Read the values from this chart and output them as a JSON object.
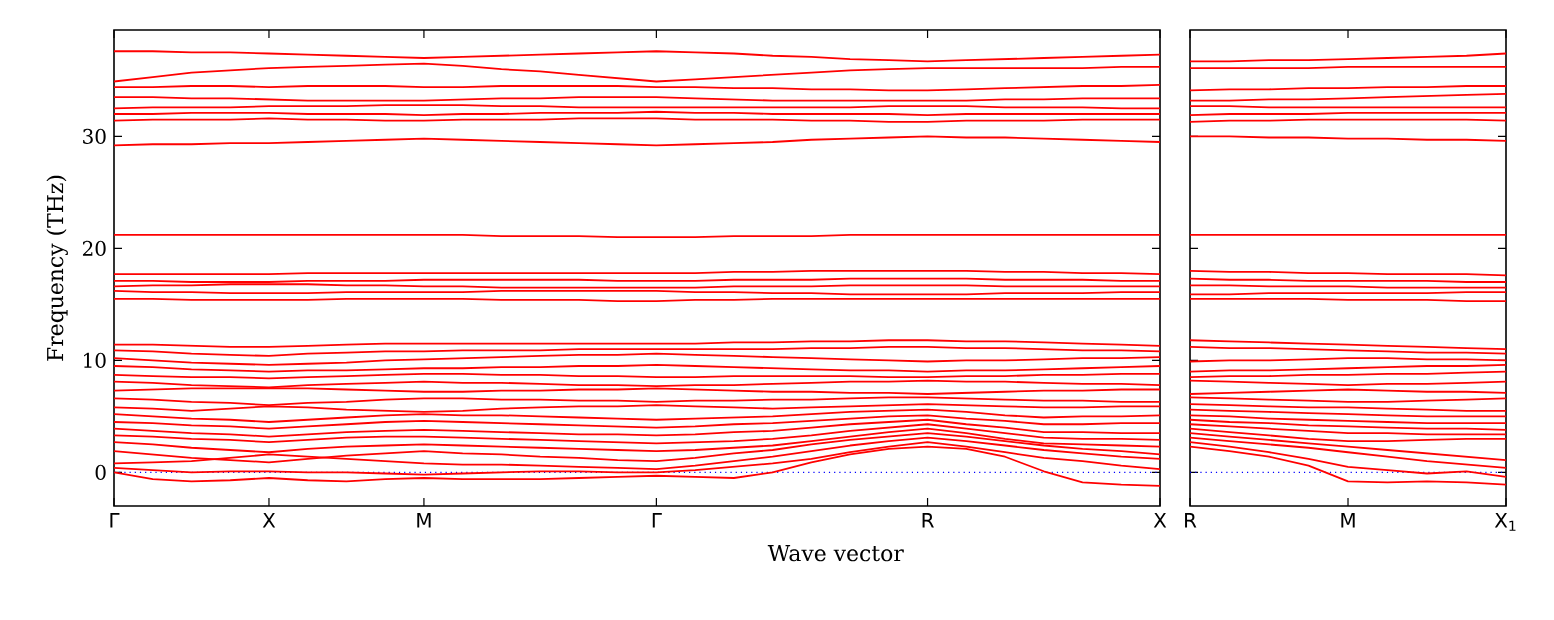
{
  "chart_data": [
    {
      "type": "line",
      "ylabel": "Frequency (THz)",
      "xlabel": "Wave vector",
      "marker": "none",
      "line_style": "solid",
      "categories": [
        "Γ",
        null,
        null,
        null,
        "X",
        null,
        null,
        null,
        "M",
        null,
        null,
        null,
        null,
        null,
        "Γ",
        null,
        null,
        null,
        null,
        null,
        null,
        "R",
        null,
        null,
        null,
        null,
        null,
        "X"
      ],
      "ylim": [
        -3,
        39.5
      ],
      "yticks": [
        0,
        10,
        20,
        30
      ],
      "ref_lines": [
        {
          "axis": "y",
          "value": 0,
          "color": "#0000ff",
          "line_style": "dotted"
        }
      ],
      "series": [
        {
          "color": "#ff0000",
          "values": [
            0,
            -0.6,
            -0.8,
            -0.7,
            -0.5,
            -0.7,
            -0.8,
            -0.6,
            -0.5,
            -0.6,
            -0.6,
            -0.6,
            -0.5,
            -0.4,
            -0.3,
            -0.4,
            -0.5,
            0,
            0.9,
            1.6,
            2.1,
            2.3,
            2.1,
            1.4,
            0.1,
            -0.9,
            -1.1,
            -1.2
          ]
        },
        {
          "color": "#ff0000",
          "values": [
            0.4,
            0.2,
            0.0,
            0.1,
            0.1,
            0.0,
            0.0,
            -0.1,
            -0.2,
            -0.1,
            0.0,
            0.1,
            0.1,
            0.0,
            0.0,
            0.2,
            0.5,
            0.8,
            1.2,
            1.8,
            2.3,
            2.7,
            2.3,
            1.8,
            1.3,
            1.0,
            0.6,
            0.3
          ]
        },
        {
          "color": "#ff0000",
          "values": [
            0.8,
            0.9,
            1.0,
            1.3,
            1.6,
            1.4,
            1.2,
            1.0,
            0.8,
            0.7,
            0.7,
            0.6,
            0.5,
            0.4,
            0.3,
            0.6,
            1.0,
            1.4,
            1.9,
            2.4,
            2.8,
            3.1,
            2.8,
            2.4,
            2.0,
            1.7,
            1.4,
            1.2
          ]
        },
        {
          "color": "#ff0000",
          "values": [
            1.9,
            1.6,
            1.3,
            1.1,
            0.9,
            1.2,
            1.5,
            1.7,
            1.9,
            1.7,
            1.6,
            1.4,
            1.3,
            1.1,
            1.0,
            1.3,
            1.7,
            2.0,
            2.5,
            2.9,
            3.2,
            3.5,
            3.2,
            2.8,
            2.4,
            2.1,
            1.9,
            1.6
          ]
        },
        {
          "color": "#ff0000",
          "values": [
            2.7,
            2.5,
            2.2,
            2.0,
            1.8,
            2.1,
            2.3,
            2.4,
            2.5,
            2.4,
            2.3,
            2.2,
            2.1,
            2.0,
            1.9,
            2.0,
            2.2,
            2.4,
            2.8,
            3.2,
            3.6,
            3.9,
            3.5,
            3.0,
            2.6,
            2.5,
            2.4,
            2.3
          ]
        },
        {
          "color": "#ff0000",
          "values": [
            3.3,
            3.2,
            3.0,
            2.9,
            2.7,
            2.9,
            3.1,
            3.2,
            3.2,
            3.1,
            3.0,
            2.9,
            2.8,
            2.7,
            2.6,
            2.7,
            2.8,
            3.0,
            3.3,
            3.7,
            4.0,
            4.3,
            3.9,
            3.5,
            3.1,
            3.0,
            3.0,
            2.9
          ]
        },
        {
          "color": "#ff0000",
          "values": [
            3.9,
            3.7,
            3.5,
            3.4,
            3.2,
            3.4,
            3.6,
            3.7,
            3.8,
            3.7,
            3.6,
            3.5,
            3.4,
            3.4,
            3.3,
            3.4,
            3.6,
            3.7,
            4.0,
            4.3,
            4.5,
            4.7,
            4.3,
            4.0,
            3.6,
            3.6,
            3.5,
            3.5
          ]
        },
        {
          "color": "#ff0000",
          "values": [
            4.5,
            4.4,
            4.2,
            4.1,
            3.9,
            4.1,
            4.3,
            4.5,
            4.6,
            4.5,
            4.4,
            4.3,
            4.2,
            4.1,
            4.0,
            4.1,
            4.3,
            4.4,
            4.6,
            4.8,
            5.0,
            5.1,
            4.8,
            4.6,
            4.3,
            4.3,
            4.4,
            4.4
          ]
        },
        {
          "color": "#ff0000",
          "values": [
            5.2,
            5.0,
            4.8,
            4.7,
            4.5,
            4.7,
            4.9,
            5.1,
            5.2,
            5.1,
            5.1,
            5.0,
            4.9,
            4.8,
            4.7,
            4.8,
            4.9,
            5.0,
            5.2,
            5.4,
            5.5,
            5.6,
            5.4,
            5.1,
            4.9,
            5.0,
            5.0,
            5.1
          ]
        },
        {
          "color": "#ff0000",
          "values": [
            5.8,
            5.7,
            5.5,
            5.7,
            5.9,
            5.8,
            5.6,
            5.5,
            5.4,
            5.5,
            5.7,
            5.8,
            5.9,
            5.9,
            6.0,
            5.9,
            5.8,
            5.7,
            5.8,
            5.9,
            6.0,
            6.1,
            6.0,
            5.9,
            5.8,
            5.8,
            5.9,
            5.9
          ]
        },
        {
          "color": "#ff0000",
          "values": [
            6.6,
            6.5,
            6.3,
            6.2,
            6.0,
            6.2,
            6.3,
            6.5,
            6.6,
            6.6,
            6.5,
            6.5,
            6.4,
            6.4,
            6.3,
            6.4,
            6.4,
            6.5,
            6.5,
            6.6,
            6.7,
            6.7,
            6.6,
            6.5,
            6.4,
            6.4,
            6.3,
            6.3
          ]
        },
        {
          "color": "#ff0000",
          "values": [
            7.3,
            7.4,
            7.5,
            7.5,
            7.5,
            7.5,
            7.4,
            7.3,
            7.2,
            7.2,
            7.3,
            7.3,
            7.4,
            7.4,
            7.5,
            7.4,
            7.3,
            7.2,
            7.2,
            7.1,
            7.1,
            7.0,
            7.1,
            7.2,
            7.3,
            7.3,
            7.4,
            7.4
          ]
        },
        {
          "color": "#ff0000",
          "values": [
            8.1,
            8.0,
            7.8,
            7.7,
            7.6,
            7.8,
            7.9,
            8.0,
            8.1,
            8.0,
            8.0,
            7.9,
            7.8,
            7.8,
            7.7,
            7.8,
            7.8,
            7.9,
            8.0,
            8.1,
            8.1,
            8.2,
            8.1,
            8.1,
            8.0,
            7.9,
            7.9,
            7.8
          ]
        },
        {
          "color": "#ff0000",
          "values": [
            8.7,
            8.6,
            8.5,
            8.5,
            8.4,
            8.5,
            8.6,
            8.7,
            8.8,
            8.8,
            8.7,
            8.7,
            8.6,
            8.6,
            8.5,
            8.5,
            8.6,
            8.6,
            8.6,
            8.6,
            8.5,
            8.5,
            8.6,
            8.6,
            8.7,
            8.7,
            8.8,
            8.8
          ]
        },
        {
          "color": "#ff0000",
          "values": [
            9.5,
            9.4,
            9.2,
            9.1,
            9.0,
            9.1,
            9.1,
            9.2,
            9.3,
            9.3,
            9.4,
            9.4,
            9.5,
            9.5,
            9.6,
            9.5,
            9.4,
            9.3,
            9.2,
            9.1,
            9.1,
            9.0,
            9.1,
            9.1,
            9.2,
            9.3,
            9.4,
            9.5
          ]
        },
        {
          "color": "#ff0000",
          "values": [
            10.2,
            10.0,
            9.8,
            9.7,
            9.6,
            9.7,
            9.8,
            10.0,
            10.1,
            10.2,
            10.3,
            10.4,
            10.5,
            10.5,
            10.6,
            10.5,
            10.4,
            10.3,
            10.2,
            10.1,
            10.0,
            9.9,
            10.0,
            10.0,
            10.1,
            10.2,
            10.2,
            10.3
          ]
        },
        {
          "color": "#ff0000",
          "values": [
            10.9,
            10.8,
            10.6,
            10.5,
            10.4,
            10.6,
            10.7,
            10.8,
            10.8,
            10.9,
            10.9,
            10.9,
            11.0,
            11.0,
            11.0,
            11.0,
            11.0,
            11.0,
            11.1,
            11.1,
            11.2,
            11.2,
            11.1,
            11.1,
            11.0,
            10.9,
            10.9,
            10.8
          ]
        },
        {
          "color": "#ff0000",
          "values": [
            11.4,
            11.4,
            11.3,
            11.2,
            11.2,
            11.3,
            11.4,
            11.5,
            11.5,
            11.5,
            11.5,
            11.5,
            11.5,
            11.5,
            11.5,
            11.5,
            11.6,
            11.6,
            11.7,
            11.7,
            11.8,
            11.8,
            11.7,
            11.7,
            11.6,
            11.5,
            11.4,
            11.3
          ]
        },
        {
          "color": "#ff0000",
          "values": [
            15.5,
            15.5,
            15.4,
            15.4,
            15.4,
            15.4,
            15.5,
            15.5,
            15.5,
            15.5,
            15.4,
            15.4,
            15.4,
            15.3,
            15.3,
            15.4,
            15.4,
            15.5,
            15.5,
            15.5,
            15.5,
            15.5,
            15.5,
            15.5,
            15.5,
            15.5,
            15.5,
            15.5
          ]
        },
        {
          "color": "#ff0000",
          "values": [
            16.2,
            16.1,
            16.1,
            16.0,
            16.0,
            16.0,
            16.1,
            16.1,
            16.1,
            16.1,
            16.2,
            16.2,
            16.2,
            16.2,
            16.2,
            16.1,
            16.1,
            16.0,
            16.0,
            15.9,
            15.9,
            15.9,
            15.9,
            16.0,
            16.0,
            16.0,
            16.1,
            16.1
          ]
        },
        {
          "color": "#ff0000",
          "values": [
            16.6,
            16.7,
            16.7,
            16.8,
            16.8,
            16.8,
            16.7,
            16.7,
            16.6,
            16.6,
            16.5,
            16.5,
            16.5,
            16.5,
            16.5,
            16.5,
            16.6,
            16.6,
            16.6,
            16.7,
            16.7,
            16.7,
            16.7,
            16.6,
            16.6,
            16.6,
            16.6,
            16.6
          ]
        },
        {
          "color": "#ff0000",
          "values": [
            17.1,
            17.1,
            17.0,
            17.0,
            17.0,
            17.1,
            17.1,
            17.1,
            17.2,
            17.2,
            17.2,
            17.2,
            17.2,
            17.1,
            17.1,
            17.1,
            17.2,
            17.2,
            17.2,
            17.3,
            17.3,
            17.3,
            17.3,
            17.2,
            17.2,
            17.2,
            17.1,
            17.1
          ]
        },
        {
          "color": "#ff0000",
          "values": [
            17.7,
            17.7,
            17.7,
            17.7,
            17.7,
            17.8,
            17.8,
            17.8,
            17.8,
            17.8,
            17.8,
            17.8,
            17.8,
            17.8,
            17.8,
            17.8,
            17.9,
            17.9,
            18.0,
            18.0,
            18.0,
            18.0,
            18.0,
            17.9,
            17.9,
            17.8,
            17.8,
            17.7
          ]
        },
        {
          "color": "#ff0000",
          "values": [
            21.2,
            21.2,
            21.2,
            21.2,
            21.2,
            21.2,
            21.2,
            21.2,
            21.2,
            21.2,
            21.1,
            21.1,
            21.1,
            21.0,
            21.0,
            21.0,
            21.1,
            21.1,
            21.1,
            21.2,
            21.2,
            21.2,
            21.2,
            21.2,
            21.2,
            21.2,
            21.2,
            21.2
          ]
        },
        {
          "color": "#ff0000",
          "values": [
            29.2,
            29.3,
            29.3,
            29.4,
            29.4,
            29.5,
            29.6,
            29.7,
            29.8,
            29.7,
            29.6,
            29.5,
            29.4,
            29.3,
            29.2,
            29.3,
            29.4,
            29.5,
            29.7,
            29.8,
            29.9,
            30.0,
            29.9,
            29.9,
            29.8,
            29.7,
            29.6,
            29.5
          ]
        },
        {
          "color": "#ff0000",
          "values": [
            31.4,
            31.5,
            31.5,
            31.5,
            31.6,
            31.5,
            31.5,
            31.4,
            31.4,
            31.5,
            31.5,
            31.5,
            31.6,
            31.6,
            31.6,
            31.5,
            31.5,
            31.5,
            31.4,
            31.4,
            31.3,
            31.3,
            31.4,
            31.4,
            31.4,
            31.5,
            31.5,
            31.5
          ]
        },
        {
          "color": "#ff0000",
          "values": [
            32.0,
            32.0,
            32.1,
            32.1,
            32.1,
            32.0,
            32.0,
            32.0,
            31.9,
            32.0,
            32.0,
            32.1,
            32.1,
            32.1,
            32.2,
            32.1,
            32.1,
            32.0,
            32.0,
            32.0,
            32.0,
            31.9,
            32.0,
            32.0,
            32.0,
            32.0,
            32.0,
            32.0
          ]
        },
        {
          "color": "#ff0000",
          "values": [
            32.5,
            32.6,
            32.6,
            32.6,
            32.7,
            32.7,
            32.7,
            32.8,
            32.8,
            32.8,
            32.7,
            32.7,
            32.6,
            32.6,
            32.6,
            32.6,
            32.6,
            32.6,
            32.6,
            32.6,
            32.7,
            32.7,
            32.7,
            32.6,
            32.6,
            32.6,
            32.5,
            32.5
          ]
        },
        {
          "color": "#ff0000",
          "values": [
            33.5,
            33.5,
            33.4,
            33.4,
            33.3,
            33.2,
            33.2,
            33.2,
            33.2,
            33.3,
            33.4,
            33.4,
            33.5,
            33.5,
            33.5,
            33.4,
            33.3,
            33.2,
            33.2,
            33.2,
            33.2,
            33.2,
            33.2,
            33.3,
            33.3,
            33.4,
            33.4,
            33.4
          ]
        },
        {
          "color": "#ff0000",
          "values": [
            34.4,
            34.4,
            34.5,
            34.5,
            34.4,
            34.5,
            34.5,
            34.5,
            34.4,
            34.4,
            34.5,
            34.5,
            34.5,
            34.5,
            34.4,
            34.4,
            34.3,
            34.3,
            34.2,
            34.2,
            34.1,
            34.1,
            34.2,
            34.3,
            34.4,
            34.5,
            34.5,
            34.6
          ]
        },
        {
          "color": "#ff0000",
          "values": [
            34.9,
            35.3,
            35.7,
            35.9,
            36.1,
            36.2,
            36.3,
            36.4,
            36.5,
            36.3,
            36.0,
            35.8,
            35.5,
            35.2,
            34.9,
            35.1,
            35.3,
            35.5,
            35.7,
            35.9,
            36.0,
            36.1,
            36.1,
            36.1,
            36.1,
            36.1,
            36.2,
            36.2
          ]
        },
        {
          "color": "#ff0000",
          "values": [
            37.6,
            37.6,
            37.5,
            37.5,
            37.4,
            37.3,
            37.2,
            37.1,
            37.0,
            37.1,
            37.2,
            37.3,
            37.4,
            37.5,
            37.6,
            37.5,
            37.4,
            37.2,
            37.1,
            36.9,
            36.8,
            36.7,
            36.8,
            36.9,
            37.0,
            37.1,
            37.2,
            37.3
          ]
        }
      ]
    },
    {
      "type": "line",
      "marker": "none",
      "line_style": "solid",
      "tick_labels": "x",
      "categories": [
        "R",
        null,
        null,
        null,
        "M",
        null,
        null,
        null,
        "X$_{1}$"
      ],
      "ylim": [
        -3,
        39.5
      ],
      "yticks": [
        0,
        10,
        20,
        30
      ],
      "ref_lines": [
        {
          "axis": "y",
          "value": 0,
          "color": "#0000ff",
          "line_style": "dotted"
        }
      ],
      "series": [
        {
          "color": "#ff0000",
          "values": [
            2.3,
            1.9,
            1.4,
            0.6,
            -0.8,
            -0.9,
            -0.8,
            -0.9,
            -1.1
          ]
        },
        {
          "color": "#ff0000",
          "values": [
            2.7,
            2.3,
            1.8,
            1.2,
            0.5,
            0.2,
            -0.1,
            0.1,
            -0.4
          ]
        },
        {
          "color": "#ff0000",
          "values": [
            3.1,
            2.8,
            2.5,
            2.2,
            1.8,
            1.4,
            1.0,
            0.7,
            0.4
          ]
        },
        {
          "color": "#ff0000",
          "values": [
            3.5,
            3.2,
            2.9,
            2.6,
            2.3,
            2.0,
            1.7,
            1.4,
            1.1
          ]
        },
        {
          "color": "#ff0000",
          "values": [
            3.9,
            3.6,
            3.3,
            3.0,
            2.8,
            2.8,
            2.9,
            3.0,
            3.0
          ]
        },
        {
          "color": "#ff0000",
          "values": [
            4.3,
            4.1,
            3.9,
            3.7,
            3.5,
            3.5,
            3.4,
            3.4,
            3.4
          ]
        },
        {
          "color": "#ff0000",
          "values": [
            4.7,
            4.5,
            4.4,
            4.2,
            4.1,
            4.0,
            3.9,
            3.9,
            3.8
          ]
        },
        {
          "color": "#ff0000",
          "values": [
            5.1,
            5.0,
            4.8,
            4.7,
            4.6,
            4.5,
            4.4,
            4.4,
            4.4
          ]
        },
        {
          "color": "#ff0000",
          "values": [
            5.6,
            5.5,
            5.4,
            5.3,
            5.2,
            5.1,
            5.0,
            5.0,
            5.0
          ]
        },
        {
          "color": "#ff0000",
          "values": [
            6.1,
            6.0,
            5.9,
            5.8,
            5.8,
            5.7,
            5.6,
            5.5,
            5.5
          ]
        },
        {
          "color": "#ff0000",
          "values": [
            6.7,
            6.6,
            6.5,
            6.4,
            6.3,
            6.3,
            6.4,
            6.5,
            6.6
          ]
        },
        {
          "color": "#ff0000",
          "values": [
            7.0,
            7.1,
            7.2,
            7.3,
            7.4,
            7.3,
            7.2,
            7.2,
            7.1
          ]
        },
        {
          "color": "#ff0000",
          "values": [
            8.2,
            8.1,
            8.0,
            7.9,
            7.8,
            7.9,
            7.9,
            8.0,
            8.1
          ]
        },
        {
          "color": "#ff0000",
          "values": [
            8.5,
            8.6,
            8.6,
            8.7,
            8.7,
            8.8,
            8.8,
            8.9,
            9.0
          ]
        },
        {
          "color": "#ff0000",
          "values": [
            9.0,
            9.1,
            9.1,
            9.2,
            9.3,
            9.4,
            9.5,
            9.5,
            9.6
          ]
        },
        {
          "color": "#ff0000",
          "values": [
            9.9,
            10.0,
            10.0,
            10.1,
            10.2,
            10.2,
            10.1,
            10.1,
            10.0
          ]
        },
        {
          "color": "#ff0000",
          "values": [
            11.2,
            11.1,
            11.1,
            11.0,
            10.9,
            10.8,
            10.7,
            10.7,
            10.6
          ]
        },
        {
          "color": "#ff0000",
          "values": [
            11.8,
            11.7,
            11.6,
            11.5,
            11.4,
            11.3,
            11.2,
            11.1,
            11.0
          ]
        },
        {
          "color": "#ff0000",
          "values": [
            15.5,
            15.5,
            15.5,
            15.5,
            15.4,
            15.4,
            15.4,
            15.3,
            15.3
          ]
        },
        {
          "color": "#ff0000",
          "values": [
            15.9,
            15.9,
            16.0,
            16.0,
            16.0,
            16.0,
            16.0,
            16.1,
            16.1
          ]
        },
        {
          "color": "#ff0000",
          "values": [
            16.7,
            16.7,
            16.6,
            16.6,
            16.6,
            16.5,
            16.5,
            16.5,
            16.5
          ]
        },
        {
          "color": "#ff0000",
          "values": [
            17.3,
            17.2,
            17.2,
            17.1,
            17.1,
            17.1,
            17.1,
            17.0,
            17.0
          ]
        },
        {
          "color": "#ff0000",
          "values": [
            18.0,
            17.9,
            17.9,
            17.8,
            17.8,
            17.7,
            17.7,
            17.7,
            17.6
          ]
        },
        {
          "color": "#ff0000",
          "values": [
            21.2,
            21.2,
            21.2,
            21.2,
            21.2,
            21.2,
            21.2,
            21.2,
            21.2
          ]
        },
        {
          "color": "#ff0000",
          "values": [
            30.0,
            30.0,
            29.9,
            29.9,
            29.8,
            29.8,
            29.7,
            29.7,
            29.6
          ]
        },
        {
          "color": "#ff0000",
          "values": [
            31.3,
            31.4,
            31.4,
            31.5,
            31.5,
            31.5,
            31.5,
            31.5,
            31.4
          ]
        },
        {
          "color": "#ff0000",
          "values": [
            31.9,
            32.0,
            32.0,
            32.0,
            32.1,
            32.1,
            32.1,
            32.1,
            32.1
          ]
        },
        {
          "color": "#ff0000",
          "values": [
            32.7,
            32.7,
            32.6,
            32.6,
            32.6,
            32.6,
            32.6,
            32.6,
            32.6
          ]
        },
        {
          "color": "#ff0000",
          "values": [
            33.2,
            33.2,
            33.3,
            33.3,
            33.4,
            33.5,
            33.6,
            33.7,
            33.8
          ]
        },
        {
          "color": "#ff0000",
          "values": [
            34.1,
            34.2,
            34.2,
            34.3,
            34.3,
            34.4,
            34.4,
            34.5,
            34.5
          ]
        },
        {
          "color": "#ff0000",
          "values": [
            36.1,
            36.1,
            36.1,
            36.1,
            36.2,
            36.2,
            36.2,
            36.2,
            36.2
          ]
        },
        {
          "color": "#ff0000",
          "values": [
            36.7,
            36.7,
            36.8,
            36.8,
            36.9,
            37.0,
            37.1,
            37.2,
            37.4
          ]
        }
      ]
    }
  ]
}
